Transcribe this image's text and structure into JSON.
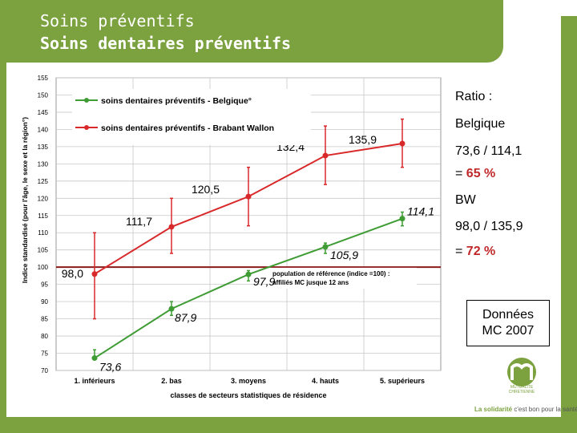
{
  "slide": {
    "title": "Soins préventifs",
    "subtitle": "Soins dentaires préventifs",
    "accent_color": "#7ba23f"
  },
  "side_panel": {
    "ratio_label": "Ratio :",
    "belgique_label": "Belgique",
    "belgique_calc": "73,6 / 114,1",
    "belgique_eq": "= ",
    "belgique_pct": "65 %",
    "bw_label": "BW",
    "bw_calc": "98,0 / 135,9",
    "bw_eq": "= ",
    "bw_pct": "72 %",
    "note_line1": "Données",
    "note_line2": "MC 2007"
  },
  "footer": {
    "brand": "La solidarité",
    "tagline": "c'est bon pour la santé"
  },
  "logo": {
    "icon": "mutualite-chretienne-logo-icon",
    "text1": "MUTUALITE",
    "text2": "CHRETIENNE"
  },
  "chart_data": {
    "type": "line",
    "ylabel": "Indice standardisé (pour l'âge, le sexe et la région°)",
    "xlabel": "classes de secteurs statistiques de résidence",
    "categories": [
      "1. inférieurs",
      "2. bas",
      "3. moyens",
      "4. hauts",
      "5. supérieurs"
    ],
    "ylim": [
      70,
      155
    ],
    "yticks": [
      70,
      75,
      80,
      85,
      90,
      95,
      100,
      105,
      110,
      115,
      120,
      125,
      130,
      135,
      140,
      145,
      150,
      155
    ],
    "grid": true,
    "legend_position": "top-left",
    "reference": {
      "value": 100,
      "color": "#8b1a1a",
      "label_line1": "population de référence (indice =100) :",
      "label_line2": "affiliés MC jusque 12 ans"
    },
    "series": [
      {
        "name": "soins dentaires préventifs - Belgique°",
        "color": "#3f9c35",
        "values": [
          73.6,
          87.9,
          97.9,
          105.9,
          114.1
        ],
        "labels": [
          "73,6",
          "87,9",
          "97,9",
          "105,9",
          "114,1"
        ],
        "err_low": [
          74,
          86,
          96,
          104,
          112
        ],
        "err_high": [
          76,
          90,
          99,
          107,
          116
        ]
      },
      {
        "name": "soins dentaires préventifs - Brabant Wallon",
        "color": "#d9282a",
        "values": [
          98.0,
          111.7,
          120.5,
          132.4,
          135.9
        ],
        "labels": [
          "98,0",
          "111,7",
          "120,5",
          "132,4",
          "135,9"
        ],
        "err_low": [
          85,
          104,
          112,
          124,
          129
        ],
        "err_high": [
          110,
          120,
          129,
          141,
          143
        ]
      }
    ]
  }
}
